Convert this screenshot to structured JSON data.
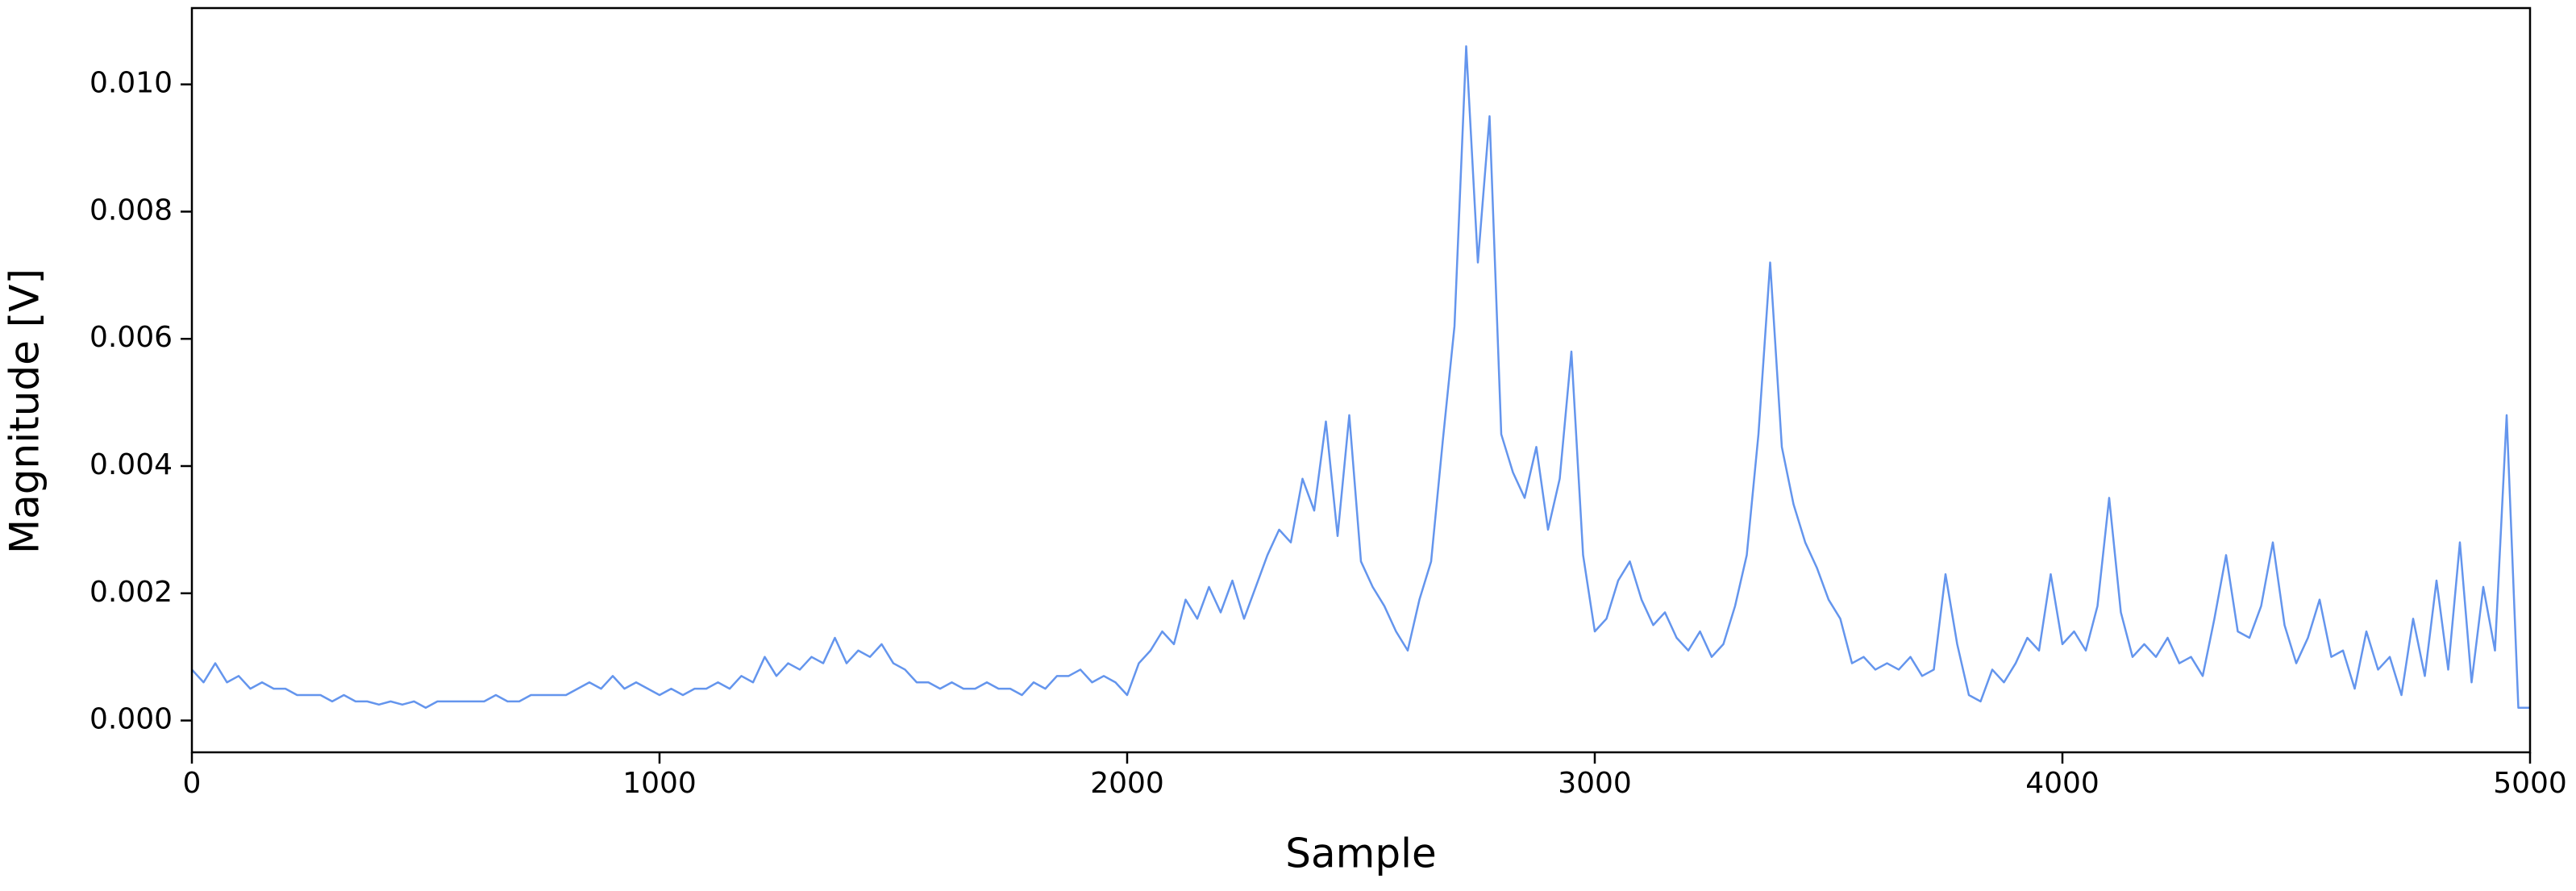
{
  "chart_data": {
    "type": "line",
    "x_label": "Sample",
    "y_label": "Magnitude [V]",
    "xlim": [
      0,
      5000
    ],
    "ylim": [
      -0.0005,
      0.0112
    ],
    "xticks": [
      0,
      1000,
      2000,
      3000,
      4000,
      5000
    ],
    "yticks": [
      {
        "value": 0,
        "label": "0.000"
      },
      {
        "value": 0.002,
        "label": "0.002"
      },
      {
        "value": 0.004,
        "label": "0.004"
      },
      {
        "value": 0.006,
        "label": "0.006"
      },
      {
        "value": 0.008,
        "label": "0.008"
      },
      {
        "value": 0.01,
        "label": "0.010"
      }
    ],
    "grid": false,
    "series": [
      {
        "color": "#6495ed",
        "x": [
          0,
          25,
          50,
          75,
          100,
          125,
          150,
          175,
          200,
          225,
          250,
          275,
          300,
          325,
          350,
          375,
          400,
          425,
          450,
          475,
          500,
          525,
          550,
          575,
          600,
          625,
          650,
          675,
          700,
          725,
          750,
          775,
          800,
          825,
          850,
          875,
          900,
          925,
          950,
          975,
          1000,
          1025,
          1050,
          1075,
          1100,
          1125,
          1150,
          1175,
          1200,
          1225,
          1250,
          1275,
          1300,
          1325,
          1350,
          1375,
          1400,
          1425,
          1450,
          1475,
          1500,
          1525,
          1550,
          1575,
          1600,
          1625,
          1650,
          1675,
          1700,
          1725,
          1750,
          1775,
          1800,
          1825,
          1850,
          1875,
          1900,
          1925,
          1950,
          1975,
          2000,
          2025,
          2050,
          2075,
          2100,
          2125,
          2150,
          2175,
          2200,
          2225,
          2250,
          2275,
          2300,
          2325,
          2350,
          2375,
          2400,
          2425,
          2450,
          2475,
          2500,
          2525,
          2550,
          2575,
          2600,
          2625,
          2650,
          2675,
          2700,
          2725,
          2750,
          2775,
          2800,
          2825,
          2850,
          2875,
          2900,
          2925,
          2950,
          2975,
          3000,
          3025,
          3050,
          3075,
          3100,
          3125,
          3150,
          3175,
          3200,
          3225,
          3250,
          3275,
          3300,
          3325,
          3350,
          3375,
          3400,
          3425,
          3450,
          3475,
          3500,
          3525,
          3550,
          3575,
          3600,
          3625,
          3650,
          3675,
          3700,
          3725,
          3750,
          3775,
          3800,
          3825,
          3850,
          3875,
          3900,
          3925,
          3950,
          3975,
          4000,
          4025,
          4050,
          4075,
          4100,
          4125,
          4150,
          4175,
          4200,
          4225,
          4250,
          4275,
          4300,
          4325,
          4350,
          4375,
          4400,
          4425,
          4450,
          4475,
          4500,
          4525,
          4550,
          4575,
          4600,
          4625,
          4650,
          4675,
          4700,
          4725,
          4750,
          4775,
          4800,
          4825,
          4850,
          4875,
          4900,
          4925,
          4950,
          4975,
          5000
        ],
        "values": [
          0.0008,
          0.0006,
          0.0009,
          0.0006,
          0.0007,
          0.0005,
          0.0006,
          0.0005,
          0.0005,
          0.0004,
          0.0004,
          0.0004,
          0.0003,
          0.0004,
          0.0003,
          0.0003,
          0.00025,
          0.0003,
          0.00025,
          0.0003,
          0.0002,
          0.0003,
          0.0003,
          0.0003,
          0.0003,
          0.0003,
          0.0004,
          0.0003,
          0.0003,
          0.0004,
          0.0004,
          0.0004,
          0.0004,
          0.0005,
          0.0006,
          0.0005,
          0.0007,
          0.0005,
          0.0006,
          0.0005,
          0.0004,
          0.0005,
          0.0004,
          0.0005,
          0.0005,
          0.0006,
          0.0005,
          0.0007,
          0.0006,
          0.001,
          0.0007,
          0.0009,
          0.0008,
          0.001,
          0.0009,
          0.0013,
          0.0009,
          0.0011,
          0.001,
          0.0012,
          0.0009,
          0.0008,
          0.0006,
          0.0006,
          0.0005,
          0.0006,
          0.0005,
          0.0005,
          0.0006,
          0.0005,
          0.0005,
          0.0004,
          0.0006,
          0.0005,
          0.0007,
          0.0007,
          0.0008,
          0.0006,
          0.0007,
          0.0006,
          0.0004,
          0.0009,
          0.0011,
          0.0014,
          0.0012,
          0.0019,
          0.0016,
          0.0021,
          0.0017,
          0.0022,
          0.0016,
          0.0021,
          0.0026,
          0.003,
          0.0028,
          0.0038,
          0.0033,
          0.0047,
          0.0029,
          0.0048,
          0.0025,
          0.0021,
          0.0018,
          0.0014,
          0.0011,
          0.0019,
          0.0025,
          0.0044,
          0.0062,
          0.0106,
          0.0072,
          0.0095,
          0.0045,
          0.0039,
          0.0035,
          0.0043,
          0.003,
          0.0038,
          0.0058,
          0.0026,
          0.0014,
          0.0016,
          0.0022,
          0.0025,
          0.0019,
          0.0015,
          0.0017,
          0.0013,
          0.0011,
          0.0014,
          0.001,
          0.0012,
          0.0018,
          0.0026,
          0.0045,
          0.0072,
          0.0043,
          0.0034,
          0.0028,
          0.0024,
          0.0019,
          0.0016,
          0.0009,
          0.001,
          0.0008,
          0.0009,
          0.0008,
          0.001,
          0.0007,
          0.0008,
          0.0023,
          0.0012,
          0.0004,
          0.0003,
          0.0008,
          0.0006,
          0.0009,
          0.0013,
          0.0011,
          0.0023,
          0.0012,
          0.0014,
          0.0011,
          0.0018,
          0.0035,
          0.0017,
          0.001,
          0.0012,
          0.001,
          0.0013,
          0.0009,
          0.001,
          0.0007,
          0.0016,
          0.0026,
          0.0014,
          0.0013,
          0.0018,
          0.0028,
          0.0015,
          0.0009,
          0.0013,
          0.0019,
          0.001,
          0.0011,
          0.0005,
          0.0014,
          0.0008,
          0.001,
          0.0004,
          0.0016,
          0.0007,
          0.0022,
          0.0008,
          0.0028,
          0.0006,
          0.0021,
          0.0011,
          0.0048,
          0.0002,
          0.0002
        ]
      }
    ]
  }
}
